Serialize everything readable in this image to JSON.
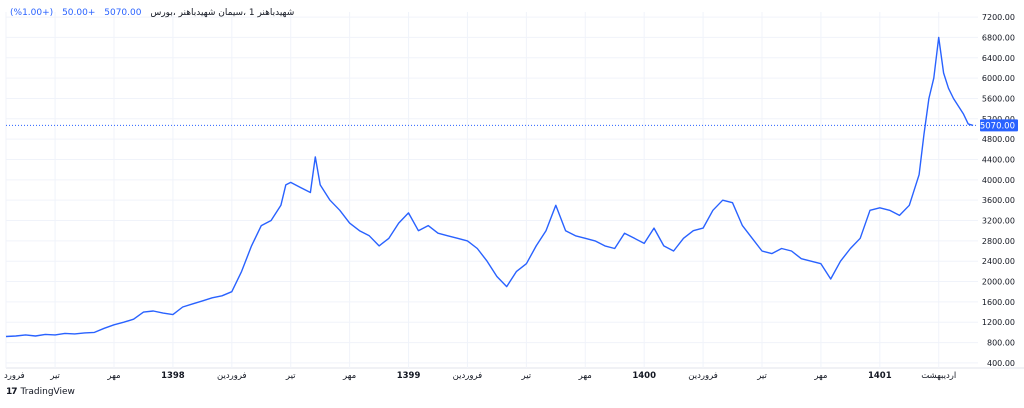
{
  "header": {
    "symbol": "شهیدباهنر 1 ،سیمان شهیدباهنر ،بورس",
    "last": "5070.00",
    "change": "+50.00",
    "change_pct": "(+1.00%)"
  },
  "footer": {
    "brand_logo": "17",
    "brand_name": "TradingView"
  },
  "colors": {
    "line": "#2962ff",
    "grid": "#f0f3fa",
    "axis_text": "#131722",
    "price_label_bg": "#2962ff"
  },
  "chart_data": {
    "type": "line",
    "title": "",
    "xlabel": "",
    "ylabel": "",
    "ylim": [
      300,
      7300
    ],
    "grid": true,
    "y_ticks": [
      "7200.00",
      "6800.00",
      "6400.00",
      "6000.00",
      "5600.00",
      "5200.00",
      "4800.00",
      "4400.00",
      "4000.00",
      "3600.00",
      "3200.00",
      "2800.00",
      "2400.00",
      "2000.00",
      "1600.00",
      "1200.00",
      "800.00",
      "400.00"
    ],
    "y_tick_values": [
      7200,
      6800,
      6400,
      6000,
      5600,
      5200,
      4800,
      4400,
      4000,
      3600,
      3200,
      2800,
      2400,
      2000,
      1600,
      1200,
      800,
      400
    ],
    "x_ticks": [
      {
        "label": "فرورد",
        "pos": 0,
        "bold": false
      },
      {
        "label": "تیر",
        "pos": 10,
        "bold": false
      },
      {
        "label": "مهر",
        "pos": 22,
        "bold": false
      },
      {
        "label": "1398",
        "pos": 34,
        "bold": true
      },
      {
        "label": "فروردین",
        "pos": 46,
        "bold": false
      },
      {
        "label": "تیر",
        "pos": 58,
        "bold": false
      },
      {
        "label": "مهر",
        "pos": 70,
        "bold": false
      },
      {
        "label": "1399",
        "pos": 82,
        "bold": true
      },
      {
        "label": "فروردین",
        "pos": 94,
        "bold": false
      },
      {
        "label": "تیر",
        "pos": 106,
        "bold": false
      },
      {
        "label": "مهر",
        "pos": 118,
        "bold": false
      },
      {
        "label": "1400",
        "pos": 130,
        "bold": true
      },
      {
        "label": "فروردین",
        "pos": 142,
        "bold": false
      },
      {
        "label": "تیر",
        "pos": 154,
        "bold": false
      },
      {
        "label": "مهر",
        "pos": 166,
        "bold": false
      },
      {
        "label": "1401",
        "pos": 178,
        "bold": true
      },
      {
        "label": "اردیبهشت",
        "pos": 190,
        "bold": false
      }
    ],
    "x_range": [
      0,
      198
    ],
    "current_price": 5070,
    "current_price_label": "5070.00",
    "series": [
      {
        "values": [
          [
            0,
            920
          ],
          [
            2,
            930
          ],
          [
            4,
            950
          ],
          [
            6,
            930
          ],
          [
            8,
            960
          ],
          [
            10,
            950
          ],
          [
            12,
            980
          ],
          [
            14,
            970
          ],
          [
            16,
            990
          ],
          [
            18,
            1000
          ],
          [
            20,
            1080
          ],
          [
            22,
            1150
          ],
          [
            24,
            1200
          ],
          [
            26,
            1260
          ],
          [
            28,
            1400
          ],
          [
            30,
            1420
          ],
          [
            32,
            1380
          ],
          [
            34,
            1350
          ],
          [
            36,
            1500
          ],
          [
            38,
            1560
          ],
          [
            40,
            1620
          ],
          [
            42,
            1680
          ],
          [
            44,
            1720
          ],
          [
            46,
            1800
          ],
          [
            48,
            2200
          ],
          [
            50,
            2700
          ],
          [
            52,
            3100
          ],
          [
            54,
            3200
          ],
          [
            56,
            3500
          ],
          [
            57,
            3900
          ],
          [
            58,
            3950
          ],
          [
            60,
            3850
          ],
          [
            62,
            3750
          ],
          [
            63,
            4450
          ],
          [
            64,
            3900
          ],
          [
            66,
            3600
          ],
          [
            68,
            3400
          ],
          [
            70,
            3150
          ],
          [
            72,
            3000
          ],
          [
            74,
            2900
          ],
          [
            76,
            2700
          ],
          [
            78,
            2850
          ],
          [
            80,
            3150
          ],
          [
            82,
            3350
          ],
          [
            84,
            3000
          ],
          [
            86,
            3100
          ],
          [
            88,
            2950
          ],
          [
            90,
            2900
          ],
          [
            92,
            2850
          ],
          [
            94,
            2800
          ],
          [
            96,
            2650
          ],
          [
            98,
            2400
          ],
          [
            100,
            2100
          ],
          [
            102,
            1900
          ],
          [
            104,
            2200
          ],
          [
            106,
            2350
          ],
          [
            108,
            2700
          ],
          [
            110,
            3000
          ],
          [
            112,
            3500
          ],
          [
            114,
            3000
          ],
          [
            116,
            2900
          ],
          [
            118,
            2850
          ],
          [
            120,
            2800
          ],
          [
            122,
            2700
          ],
          [
            124,
            2650
          ],
          [
            126,
            2950
          ],
          [
            128,
            2850
          ],
          [
            130,
            2750
          ],
          [
            132,
            3050
          ],
          [
            134,
            2700
          ],
          [
            136,
            2600
          ],
          [
            138,
            2850
          ],
          [
            140,
            3000
          ],
          [
            142,
            3050
          ],
          [
            144,
            3400
          ],
          [
            146,
            3600
          ],
          [
            148,
            3550
          ],
          [
            150,
            3100
          ],
          [
            152,
            2850
          ],
          [
            154,
            2600
          ],
          [
            156,
            2550
          ],
          [
            158,
            2650
          ],
          [
            160,
            2600
          ],
          [
            162,
            2450
          ],
          [
            164,
            2400
          ],
          [
            166,
            2350
          ],
          [
            168,
            2050
          ],
          [
            170,
            2400
          ],
          [
            172,
            2650
          ],
          [
            174,
            2850
          ],
          [
            176,
            3400
          ],
          [
            178,
            3450
          ],
          [
            180,
            3400
          ],
          [
            182,
            3300
          ],
          [
            184,
            3500
          ],
          [
            186,
            4100
          ],
          [
            187,
            4900
          ],
          [
            188,
            5600
          ],
          [
            189,
            6000
          ],
          [
            190,
            6800
          ],
          [
            191,
            6100
          ],
          [
            192,
            5800
          ],
          [
            193,
            5600
          ],
          [
            194,
            5450
          ],
          [
            195,
            5300
          ],
          [
            196,
            5100
          ],
          [
            197,
            5070
          ]
        ]
      }
    ]
  }
}
